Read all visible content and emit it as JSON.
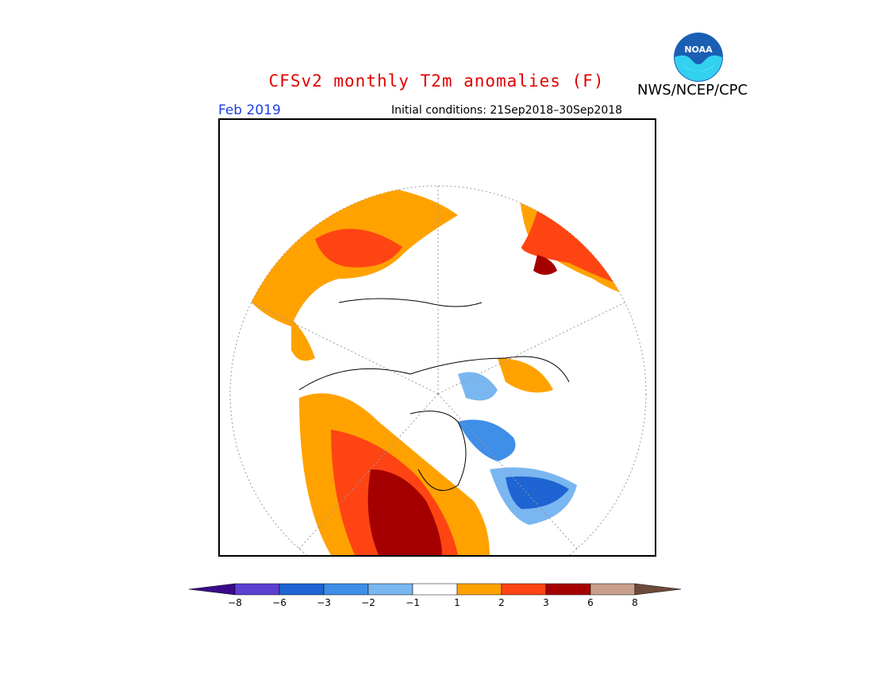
{
  "title": "CFSv2 monthly T2m anomalies (F)",
  "agency": "NWS/NCEP/CPC",
  "logo_text": "NOAA",
  "valid_month": "Feb 2019",
  "initial_conditions": "Initial conditions: 21Sep2018–30Sep2018",
  "colorbar": {
    "ticks": [
      "−8",
      "−6",
      "−3",
      "−2",
      "−1",
      "1",
      "2",
      "3",
      "6",
      "8"
    ],
    "colors": {
      "lt_-8": "#3a0a8a",
      "-8_-6": "#5b3fd0",
      "-6_-3": "#1e64d2",
      "-3_-2": "#3f8ee8",
      "-2_-1": "#7ab6f0",
      "-1_1": "#ffffff",
      "1_2": "#ffa200",
      "2_3": "#ff4414",
      "3_6": "#a50000",
      "6_8": "#c8a08c",
      "gt_8": "#6e4a3a"
    }
  }
}
